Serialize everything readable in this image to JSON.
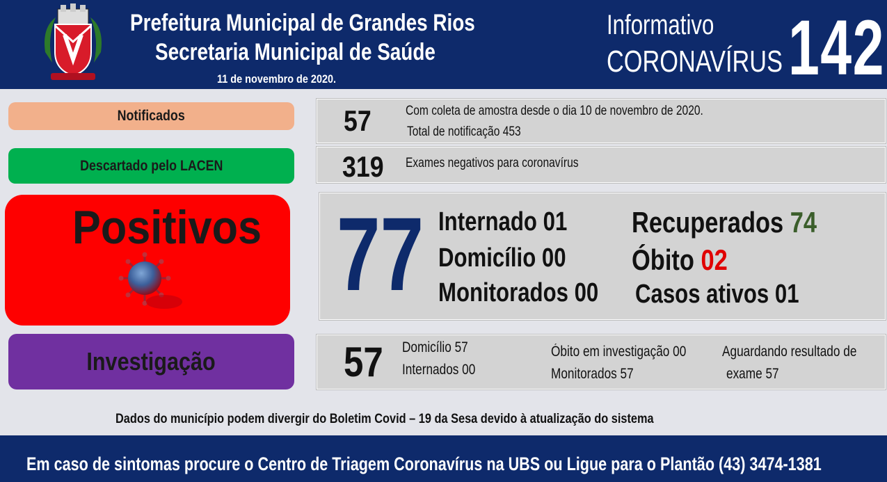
{
  "header": {
    "title_line1": "Prefeitura Municipal de Grandes Rios",
    "title_line2": "Secretaria Municipal de Saúde",
    "date": "11 de novembro  de 2020.",
    "info_line1": "Informativo",
    "info_line2": "CORONAVÍRUS",
    "bulletin_number": "142"
  },
  "notificados": {
    "label": "Notificados",
    "value": "57",
    "note1": "Com coleta de amostra desde o dia 10 de novembro de 2020.",
    "note2": "Total de notificação 453"
  },
  "descartados": {
    "label": "Descartado  pelo LACEN",
    "value": "319",
    "note": "Exames negativos  para coronavírus"
  },
  "positivos": {
    "label": "Positivos",
    "value": "77",
    "internado": "Internado 01",
    "domicilio": "Domicílio 00",
    "monitorados": "Monitorados 00",
    "recuperados_label": "Recuperados",
    "recuperados_value": "74",
    "obito_label": "Óbito",
    "obito_value": "02",
    "casos_ativos": "Casos ativos 01"
  },
  "investigacao": {
    "label": "Investigação",
    "value": "57",
    "domicilio": "Domicílio 57",
    "internados": "Internados 00",
    "obito": "Óbito  em investigação  00",
    "monitorados": "Monitorados 57",
    "aguardando1": "Aguardando resultado de",
    "aguardando2": "exame 57"
  },
  "disclaimer": "Dados do município  podem  divergir  do Boletim  Covid – 19 da Sesa devido à atualização  do sistema",
  "footer": "Em caso de sintomas  procure  o Centro de Triagem  Coronavírus  na UBS ou Ligue para o Plantão  (43) 3474-1381",
  "colors": {
    "navy": "#0e2a6b",
    "notificados": "#f2b08b",
    "descartado": "#00b04f",
    "positivos": "#fe0000",
    "investigacao": "#7030a0",
    "recuperados": "#3b5e2b",
    "obito": "#e00000"
  },
  "icons": [
    "municipal-crest-icon",
    "coronavirus-icon"
  ]
}
